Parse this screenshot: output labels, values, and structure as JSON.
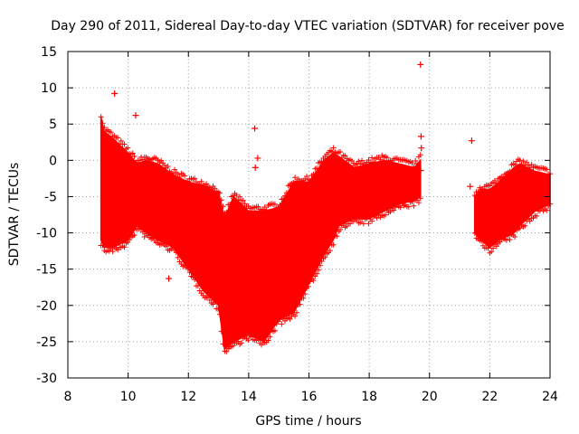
{
  "chart_data": {
    "type": "scatter",
    "title": "Day 290 of 2011, Sidereal Day-to-day VTEC variation (SDTVAR) for receiver pove",
    "xlabel": "GPS time / hours",
    "ylabel": "SDTVAR / TECUs",
    "xlim": [
      8,
      24
    ],
    "ylim": [
      -30,
      15
    ],
    "grid": true,
    "legend": "none",
    "x_ticks": [
      8,
      10,
      12,
      14,
      16,
      18,
      20,
      22,
      24
    ],
    "y_ticks": [
      -30,
      -25,
      -20,
      -15,
      -10,
      -5,
      0,
      5,
      10,
      15
    ],
    "x_tick_labels": [
      "8",
      "10",
      "12",
      "14",
      "16",
      "18",
      "20",
      "22",
      "24"
    ],
    "y_tick_labels": [
      "-30",
      "-25",
      "-20",
      "-15",
      "-10",
      "-5",
      "0",
      "5",
      "10",
      "15"
    ],
    "series": [
      {
        "name": "SDTVAR",
        "color": "#ff0000",
        "marker": "plus",
        "envelope": {
          "description": "dense band of points, lower and upper bounds vs time",
          "x": [
            9.1,
            9.2,
            9.5,
            10.0,
            10.3,
            10.6,
            11.0,
            11.5,
            12.0,
            12.5,
            13.0,
            13.2,
            13.5,
            14.0,
            14.5,
            15.0,
            15.5,
            16.0,
            16.5,
            16.8,
            17.0,
            17.5,
            18.0,
            18.5,
            19.0,
            19.5,
            19.7
          ],
          "lower": [
            -11.0,
            -12.0,
            -12.0,
            -11.0,
            -9.0,
            -10.0,
            -11.0,
            -12.0,
            -15.0,
            -18.0,
            -20.0,
            -26.0,
            -25.0,
            -24.0,
            -25.0,
            -22.0,
            -21.0,
            -17.0,
            -13.0,
            -11.0,
            -9.0,
            -8.0,
            -8.0,
            -7.0,
            -6.0,
            -5.5,
            -5.0
          ],
          "upper": [
            6.0,
            4.0,
            3.0,
            1.0,
            -0.5,
            0.0,
            -0.5,
            -2.0,
            -3.0,
            -3.5,
            -4.5,
            -8.0,
            -5.0,
            -7.0,
            -7.0,
            -6.5,
            -3.0,
            -3.0,
            0.0,
            1.0,
            0.5,
            -1.0,
            -0.5,
            0.0,
            -0.5,
            -1.0,
            0.0
          ]
        },
        "envelope2": {
          "x": [
            21.5,
            21.7,
            22.0,
            22.3,
            22.8,
            23.0,
            23.5,
            24.0
          ],
          "lower": [
            -10.0,
            -11.0,
            -12.0,
            -11.0,
            -10.0,
            -9.0,
            -7.0,
            -6.0
          ],
          "upper": [
            -5.0,
            -4.0,
            -4.0,
            -3.0,
            -1.0,
            -0.5,
            -1.5,
            -2.0
          ]
        },
        "outliers": [
          {
            "x": 9.55,
            "y": 9.2
          },
          {
            "x": 10.25,
            "y": 6.2
          },
          {
            "x": 11.35,
            "y": -16.3
          },
          {
            "x": 14.2,
            "y": 4.4
          },
          {
            "x": 14.22,
            "y": -1.0
          },
          {
            "x": 14.3,
            "y": 0.3
          },
          {
            "x": 19.7,
            "y": 13.2
          },
          {
            "x": 19.72,
            "y": 3.3
          },
          {
            "x": 19.73,
            "y": 1.7
          },
          {
            "x": 19.71,
            "y": -1.4
          },
          {
            "x": 21.4,
            "y": 2.7
          },
          {
            "x": 21.35,
            "y": -3.6
          }
        ]
      }
    ]
  }
}
